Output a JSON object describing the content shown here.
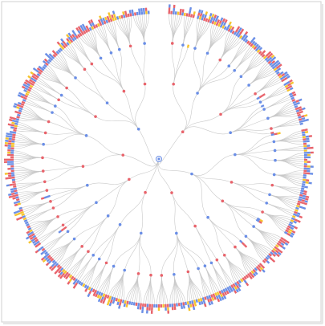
{
  "diagram": {
    "type": "radial-tree",
    "node_colors": [
      "#e8636b",
      "#6a8ee6",
      "#f6c42e"
    ],
    "link_color": "#c9c9c9",
    "root_color": "#6a8ee6"
  }
}
